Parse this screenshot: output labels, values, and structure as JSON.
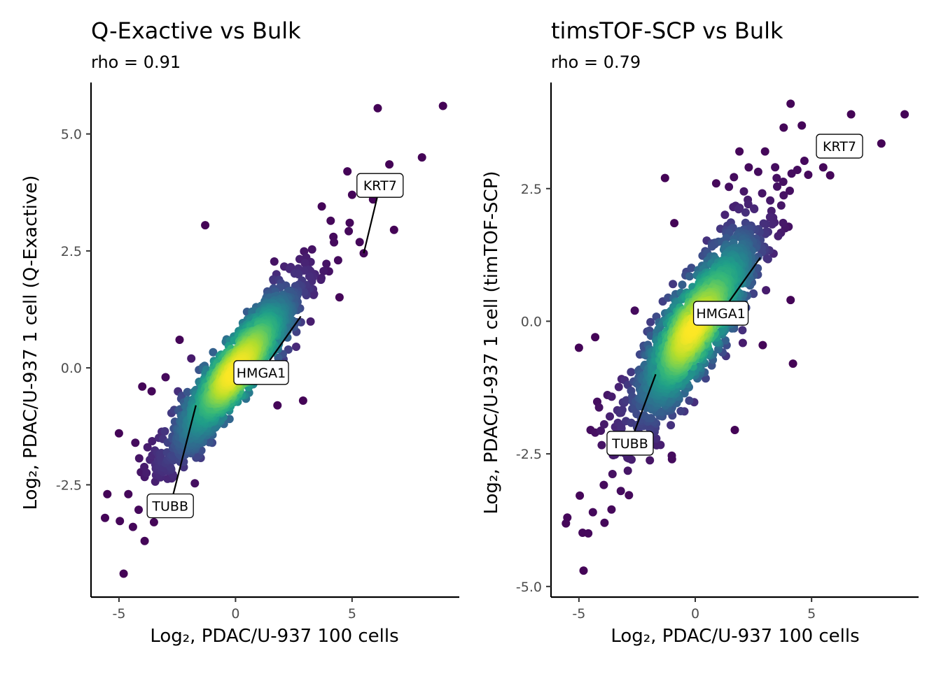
{
  "chart_data": [
    {
      "type": "scatter",
      "title": "Q-Exactive vs Bulk",
      "subtitle": "rho = 0.91",
      "xlabel": "Log₂, PDAC/U-937 100 cells",
      "ylabel": "Log₂, PDAC/U-937 1 cell (Q-Exactive)",
      "xlim": [
        -6.2,
        9.6
      ],
      "ylim": [
        -4.9,
        6.1
      ],
      "xticks": [
        -5,
        0,
        5
      ],
      "xtick_labels": [
        "-5",
        "0",
        "5"
      ],
      "yticks": [
        -2.5,
        0,
        2.5,
        5
      ],
      "ytick_labels": [
        "-2.5",
        "0.0",
        "2.5",
        "5.0"
      ],
      "grid": false,
      "legend": "none",
      "color_scale": "viridis point density",
      "fit": {
        "slope": 0.62,
        "intercept": -0.05,
        "spread": 0.32
      },
      "outliers": [
        [
          -5.5,
          -2.7
        ],
        [
          -4.8,
          -4.4
        ],
        [
          -4.6,
          -2.7
        ],
        [
          -4.4,
          -3.4
        ],
        [
          -5.0,
          -1.4
        ],
        [
          -4.3,
          -1.6
        ],
        [
          -3.9,
          -3.7
        ],
        [
          -3.5,
          -3.3
        ],
        [
          -4.0,
          -0.4
        ],
        [
          -3.6,
          -0.5
        ],
        [
          -1.3,
          3.05
        ],
        [
          -1.0,
          -1.6
        ],
        [
          -0.5,
          -1.2
        ],
        [
          1.8,
          -0.8
        ],
        [
          2.9,
          -0.7
        ],
        [
          4.9,
          3.1
        ],
        [
          5.5,
          2.45
        ],
        [
          5.9,
          3.6
        ],
        [
          6.1,
          5.55
        ],
        [
          6.8,
          2.95
        ],
        [
          6.6,
          4.35
        ],
        [
          8.0,
          4.5
        ],
        [
          8.9,
          5.6
        ],
        [
          4.8,
          4.2
        ],
        [
          5.0,
          3.7
        ],
        [
          3.7,
          3.45
        ],
        [
          4.4,
          2.3
        ],
        [
          4.2,
          2.8
        ],
        [
          3.2,
          1.7
        ],
        [
          2.6,
          0.45
        ],
        [
          -2.1,
          -1.6
        ],
        [
          -1.7,
          -1.7
        ],
        [
          -2.4,
          0.6
        ],
        [
          -1.9,
          0.2
        ],
        [
          -3.0,
          -0.2
        ]
      ],
      "labels": [
        {
          "text": "KRT7",
          "x": 5.5,
          "y": 2.45,
          "label_x": 6.2,
          "label_y": 3.9
        },
        {
          "text": "HMGA1",
          "x": 2.8,
          "y": 1.1,
          "label_x": 1.1,
          "label_y": -0.1
        },
        {
          "text": "TUBB",
          "x": -1.7,
          "y": -0.8,
          "label_x": -2.8,
          "label_y": -2.95
        }
      ]
    },
    {
      "type": "scatter",
      "title": "timsTOF-SCP vs Bulk",
      "subtitle": "rho = 0.79",
      "xlabel": "Log₂, PDAC/U-937 100 cells",
      "ylabel": "Log₂, PDAC/U-937 1 cell (timTOF-SCP)",
      "xlim": [
        -6.2,
        9.6
      ],
      "ylim": [
        -5.2,
        4.5
      ],
      "xticks": [
        -5,
        0,
        5
      ],
      "xtick_labels": [
        "-5",
        "0",
        "5"
      ],
      "yticks": [
        -5,
        -2.5,
        0,
        2.5
      ],
      "ytick_labels": [
        "-5.0",
        "-2.5",
        "0.0",
        "2.5"
      ],
      "grid": false,
      "legend": "none",
      "color_scale": "viridis point density",
      "fit": {
        "slope": 0.6,
        "intercept": -0.1,
        "spread": 0.45
      },
      "outliers": [
        [
          -5.5,
          -3.7
        ],
        [
          -4.8,
          -4.7
        ],
        [
          -4.6,
          -4.0
        ],
        [
          -4.4,
          -3.6
        ],
        [
          -4.3,
          -2.1
        ],
        [
          -4.5,
          -2.05
        ],
        [
          -5.0,
          -0.5
        ],
        [
          -4.3,
          -0.3
        ],
        [
          -3.9,
          -3.8
        ],
        [
          -3.6,
          -3.55
        ],
        [
          -3.2,
          -3.2
        ],
        [
          -1.3,
          2.7
        ],
        [
          -0.9,
          1.85
        ],
        [
          -1.0,
          -2.6
        ],
        [
          1.7,
          -2.05
        ],
        [
          4.1,
          0.4
        ],
        [
          4.2,
          -0.8
        ],
        [
          2.9,
          -0.45
        ],
        [
          4.1,
          4.1
        ],
        [
          5.9,
          3.2
        ],
        [
          6.7,
          3.9
        ],
        [
          8.0,
          3.35
        ],
        [
          9.0,
          3.9
        ],
        [
          5.5,
          2.9
        ],
        [
          5.8,
          2.75
        ],
        [
          3.8,
          3.65
        ],
        [
          3.0,
          3.2
        ],
        [
          2.3,
          2.9
        ],
        [
          3.5,
          2.7
        ],
        [
          -2.6,
          0.2
        ],
        [
          -2.2,
          -0.5
        ],
        [
          -2.9,
          -1.2
        ],
        [
          -2.5,
          -2.0
        ],
        [
          1.9,
          3.2
        ],
        [
          0.9,
          2.6
        ]
      ],
      "labels": [
        {
          "text": "KRT7",
          "x": 6.0,
          "y": 3.3,
          "label_x": 6.2,
          "label_y": 3.3
        },
        {
          "text": "HMGA1",
          "x": 2.8,
          "y": 1.2,
          "label_x": 1.1,
          "label_y": 0.15
        },
        {
          "text": "TUBB",
          "x": -1.7,
          "y": -1.0,
          "label_x": -2.8,
          "label_y": -2.3
        }
      ]
    }
  ]
}
